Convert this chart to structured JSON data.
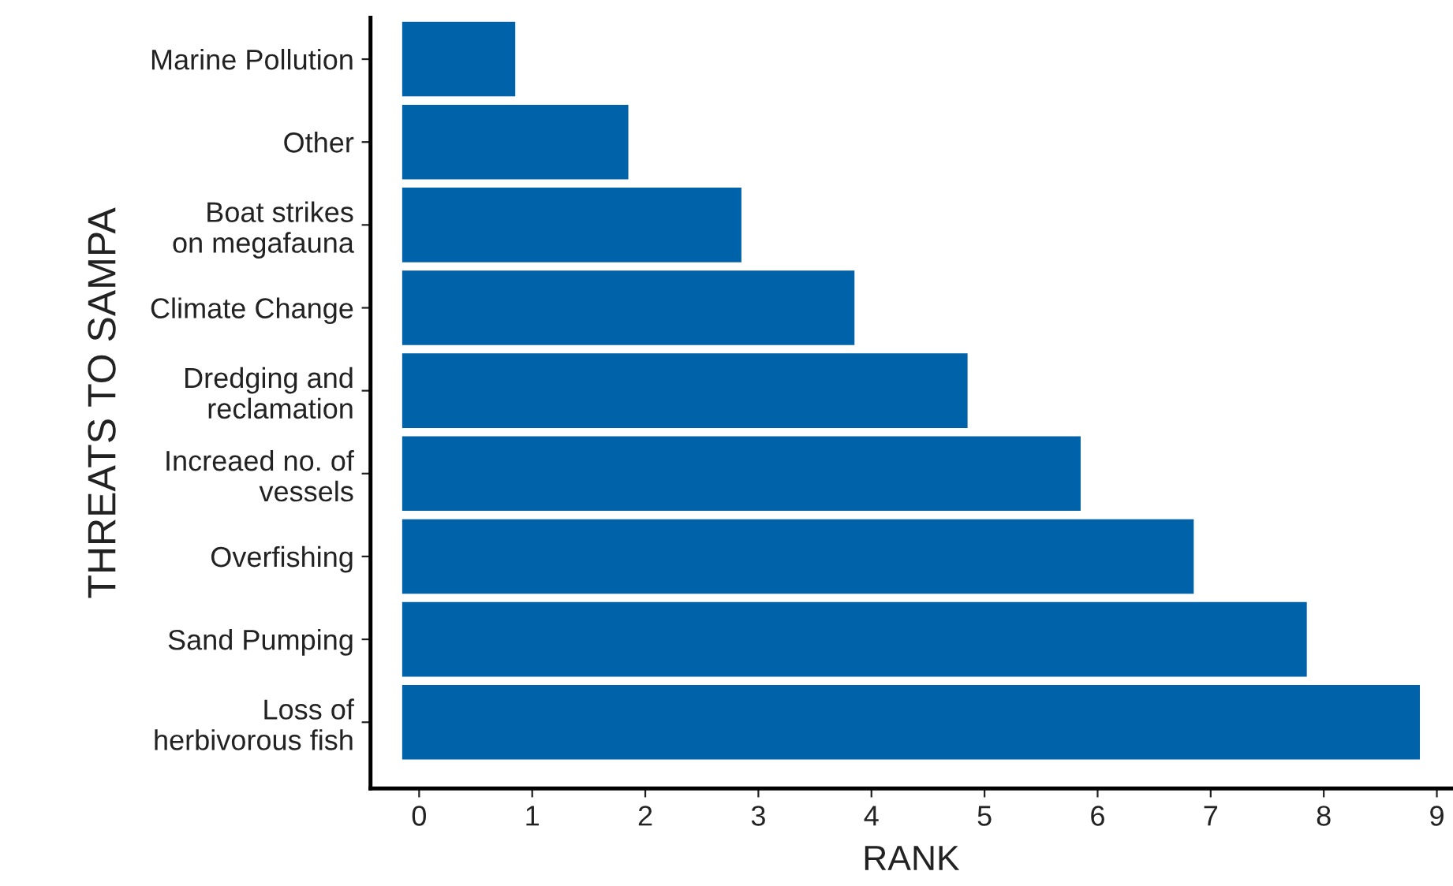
{
  "chart_data": {
    "type": "bar",
    "orientation": "horizontal",
    "xlabel": "RANK",
    "ylabel": "THREATS TO SAMPA",
    "categories": [
      "Marine Pollution",
      "Other",
      "Boat strikes\non megafauna",
      "Climate Change",
      "Dredging and\nreclamation",
      "Increaed no. of\nvessels",
      "Overfishing",
      "Sand Pumping",
      "Loss of\nherbivorous fish"
    ],
    "values": [
      1,
      2,
      3,
      4,
      5,
      6,
      7,
      8,
      9
    ],
    "base": [
      -0.15,
      -0.15,
      -0.15,
      -0.15,
      -0.15,
      -0.15,
      -0.15,
      -0.15,
      -0.15
    ],
    "color": "#0062a8",
    "xlim": [
      -0.43,
      9.13
    ],
    "xticks": [
      0,
      1,
      2,
      3,
      4,
      5,
      6,
      7,
      8,
      9
    ],
    "grid": false,
    "legend": false
  }
}
